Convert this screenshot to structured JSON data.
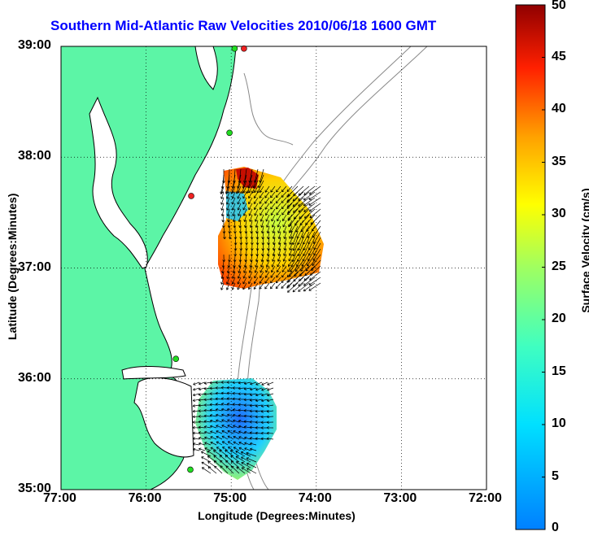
{
  "title": "Southern Mid-Atlantic Raw Velocities 2010/06/18 1600 GMT",
  "axes": {
    "xlabel": "Longitude (Degrees:Minutes)",
    "ylabel": "Latitude (Degrees:Minutes)",
    "x_ticks": [
      "77:00",
      "76:00",
      "75:00",
      "74:00",
      "73:00",
      "72:00"
    ],
    "y_ticks": [
      "39:00",
      "38:00",
      "37:00",
      "36:00",
      "35:00"
    ],
    "x_range_deg_west": [
      77,
      72
    ],
    "y_range_deg_north": [
      35,
      39
    ],
    "grid": "dotted"
  },
  "colorbar": {
    "label": "Surface Velocity (cm/s)",
    "ticks": [
      "50",
      "45",
      "40",
      "35",
      "30",
      "25",
      "20",
      "15",
      "10",
      "5",
      "0"
    ],
    "range": [
      0,
      50
    ],
    "colormap": "jet"
  },
  "colors": {
    "land": "#5cf5a6",
    "water": "#ffffff",
    "coast": "#000000",
    "bathymetry": "#888888",
    "title": "#0000ff",
    "station_green": "#22dd22",
    "station_red": "#ee2222"
  },
  "stations": [
    {
      "lon": -74.85,
      "lat": 38.98,
      "status": "red"
    },
    {
      "lon": -74.96,
      "lat": 38.98,
      "status": "green"
    },
    {
      "lon": -75.02,
      "lat": 38.22,
      "status": "green"
    },
    {
      "lon": -75.47,
      "lat": 37.65,
      "status": "red"
    },
    {
      "lon": -75.65,
      "lat": 36.18,
      "status": "green"
    },
    {
      "lon": -75.48,
      "lat": 35.18,
      "status": "green"
    }
  ]
}
